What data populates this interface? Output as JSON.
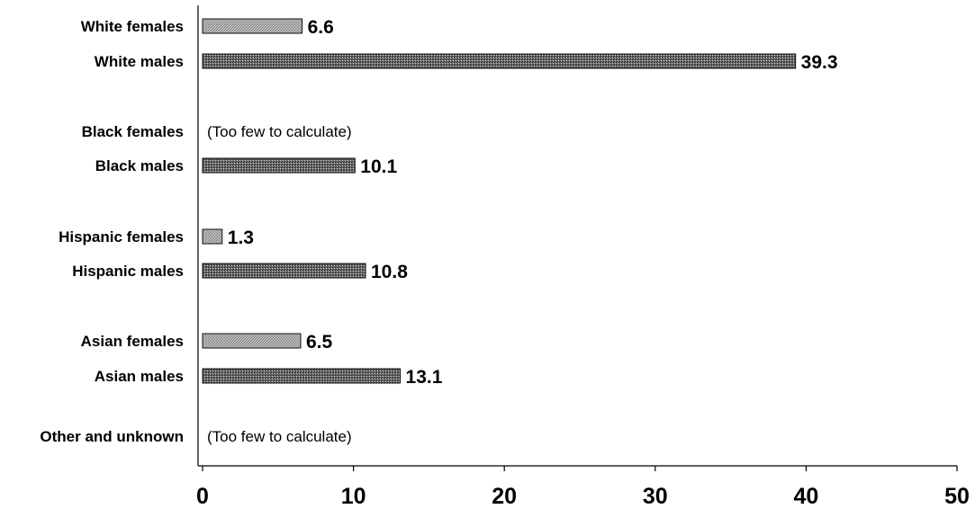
{
  "chart_data": {
    "type": "bar",
    "orientation": "horizontal",
    "categories": [
      "White females",
      "White males",
      "Black females",
      "Black males",
      "Hispanic females",
      "Hispanic males",
      "Asian females",
      "Asian males",
      "Other and unknown"
    ],
    "values": [
      6.6,
      39.3,
      null,
      10.1,
      1.3,
      10.8,
      6.5,
      13.1,
      null
    ],
    "value_labels": [
      "6.6",
      "39.3",
      "",
      "10.1",
      "1.3",
      "10.8",
      "6.5",
      "13.1",
      ""
    ],
    "notes": [
      "",
      "",
      "(Too few to calculate)",
      "",
      "",
      "",
      "",
      "",
      "(Too few to calculate)"
    ],
    "bar_kinds": [
      "female",
      "male",
      "female",
      "male",
      "female",
      "male",
      "female",
      "male",
      "male"
    ],
    "xlim": [
      0,
      50
    ],
    "xticks": [
      0,
      10,
      20,
      30,
      40,
      50
    ],
    "xtick_labels": [
      "0",
      "10",
      "20",
      "30",
      "40",
      "50"
    ],
    "title": "",
    "xlabel": "",
    "ylabel": "",
    "grid": false,
    "legend": "none",
    "colors": {
      "female_bar": "#b4b4b4",
      "male_bar": "#5a5a5a",
      "axis": "#000000"
    }
  }
}
